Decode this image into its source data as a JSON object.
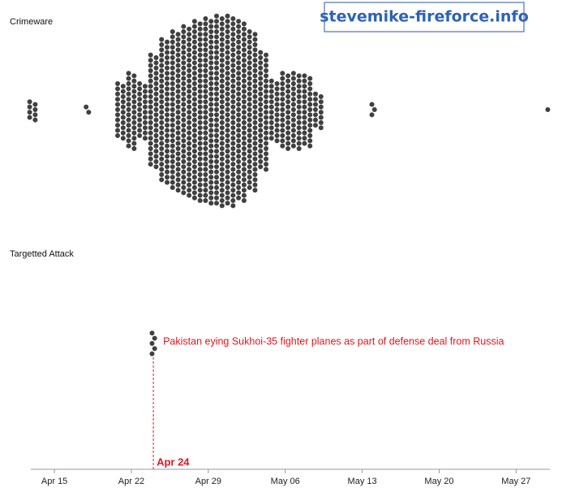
{
  "chart_data": {
    "type": "beeswarm",
    "watermark": "stevemike-fireforce.info",
    "xlim": [
      "Apr 13",
      "May 30"
    ],
    "xticks": [
      "Apr 15",
      "Apr 22",
      "Apr 29",
      "May 06",
      "May 13",
      "May 20",
      "May 27"
    ],
    "series": [
      {
        "name": "Crimeware",
        "color": "#404040",
        "x": [
          "Apr 13",
          "Apr 18",
          "Apr 21",
          "Apr 22",
          "Apr 23",
          "Apr 24",
          "Apr 25",
          "Apr 26",
          "Apr 27",
          "Apr 28",
          "Apr 29",
          "Apr 30",
          "May 01",
          "May 02",
          "May 03",
          "May 04",
          "May 05",
          "May 06",
          "May 07",
          "May 08",
          "May 09",
          "May 14",
          "May 30"
        ],
        "values": [
          8,
          2,
          22,
          30,
          22,
          44,
          56,
          62,
          66,
          70,
          72,
          74,
          74,
          70,
          62,
          46,
          24,
          30,
          30,
          28,
          14,
          3,
          1
        ]
      },
      {
        "name": "Targetted Attack",
        "color": "#404040",
        "x": [
          "Apr 24"
        ],
        "values": [
          5
        ]
      }
    ],
    "annotation": {
      "text": "Pakistan eying Sukhoi-35 fighter planes as part of defense deal from Russia",
      "x": "Apr 24",
      "color": "#e8141b"
    }
  }
}
